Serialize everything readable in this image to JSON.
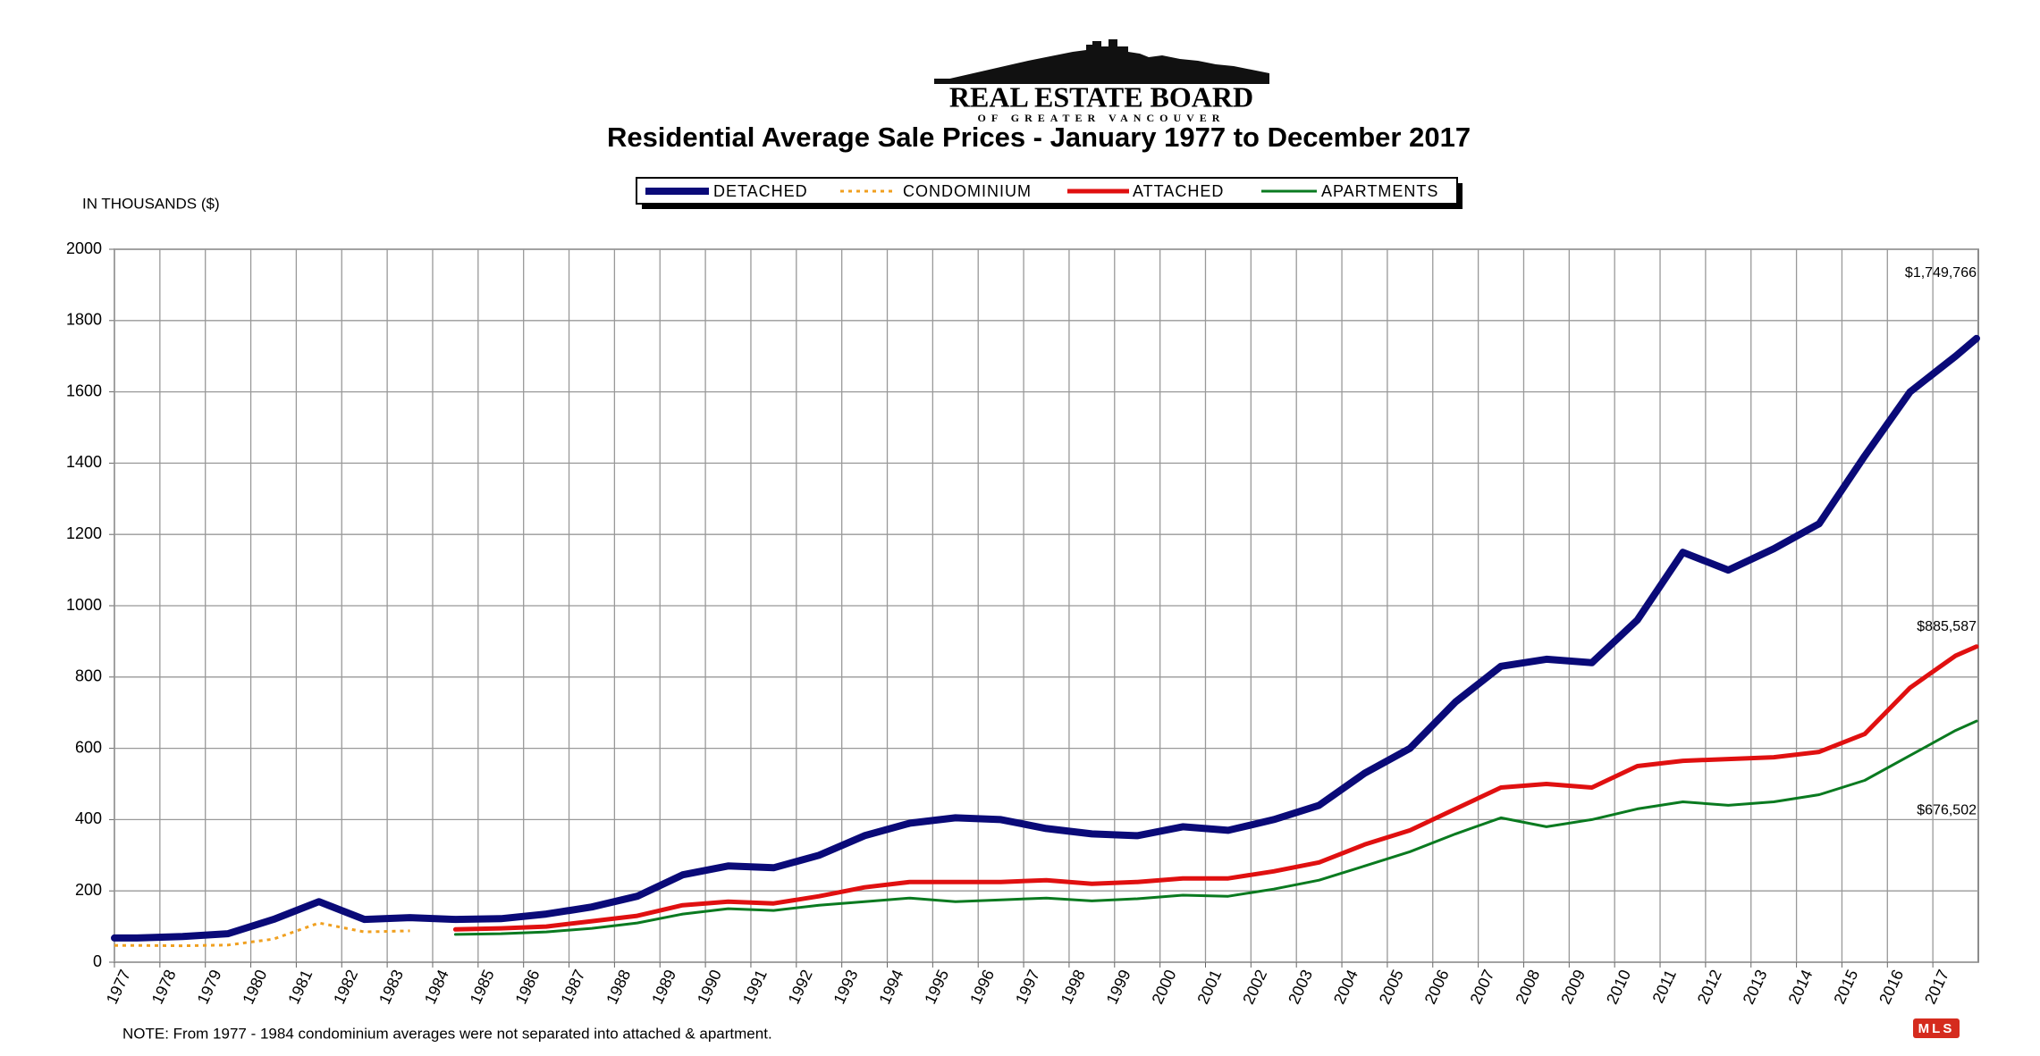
{
  "logo": {
    "name": "REAL ESTATE BOARD",
    "subname": "OF GREATER VANCOUVER"
  },
  "mls_logo": "MLS",
  "chart_data": {
    "type": "line",
    "title": "Residential Average Sale Prices  -  January 1977 to December 2017",
    "y_label": "IN THOUSANDS ($)",
    "note": "NOTE:  From 1977 - 1984 condominium averages were not separated into attached & apartment.",
    "x": [
      1977.0,
      1977.5,
      1978.5,
      1979.5,
      1980.5,
      1981.5,
      1982.5,
      1983.5,
      1984.5,
      1985.5,
      1986.5,
      1987.5,
      1988.5,
      1989.5,
      1990.5,
      1991.5,
      1992.5,
      1993.5,
      1994.5,
      1995.5,
      1996.5,
      1997.5,
      1998.5,
      1999.5,
      2000.5,
      2001.5,
      2002.5,
      2003.5,
      2004.5,
      2005.5,
      2006.5,
      2007.5,
      2008.5,
      2009.5,
      2010.5,
      2011.5,
      2012.5,
      2013.5,
      2014.5,
      2015.5,
      2016.5,
      2017.5,
      2017.96
    ],
    "series": [
      {
        "name": "DETACHED",
        "color": "#0a0a78",
        "values": [
          68,
          68,
          72,
          80,
          120,
          170,
          120,
          125,
          120,
          122,
          135,
          155,
          185,
          245,
          270,
          265,
          300,
          355,
          390,
          405,
          400,
          375,
          360,
          355,
          380,
          370,
          400,
          440,
          530,
          600,
          730,
          830,
          850,
          840,
          960,
          1150,
          1100,
          1160,
          1230,
          1420,
          1600,
          1700,
          1749.766
        ],
        "value_labels": [
          null,
          null,
          null,
          null,
          null,
          null,
          null,
          null,
          null,
          null,
          null,
          null,
          null,
          null,
          null,
          null,
          null,
          null,
          null,
          null,
          null,
          null,
          null,
          null,
          null,
          null,
          null,
          null,
          null,
          null,
          null,
          null,
          null,
          null,
          null,
          null,
          null,
          null,
          null,
          null,
          null,
          null,
          "$1,749,766"
        ]
      },
      {
        "name": "CONDOMINIUM",
        "color": "#f0a020",
        "dash": "dotted",
        "values": [
          47,
          47,
          46,
          48,
          65,
          110,
          85,
          88,
          null,
          null,
          null,
          null,
          null,
          null,
          null,
          null,
          null,
          null,
          null,
          null,
          null,
          null,
          null,
          null,
          null,
          null,
          null,
          null,
          null,
          null,
          null,
          null,
          null,
          null,
          null,
          null,
          null,
          null,
          null,
          null,
          null,
          null,
          null
        ]
      },
      {
        "name": "ATTACHED",
        "color": "#e01010",
        "values": [
          null,
          null,
          null,
          null,
          null,
          null,
          null,
          null,
          92,
          95,
          100,
          115,
          130,
          160,
          170,
          165,
          185,
          210,
          225,
          225,
          225,
          230,
          220,
          225,
          235,
          235,
          255,
          280,
          330,
          370,
          430,
          490,
          500,
          490,
          550,
          565,
          570,
          575,
          590,
          640,
          770,
          860,
          885.587
        ],
        "value_labels": [
          null,
          null,
          null,
          null,
          null,
          null,
          null,
          null,
          null,
          null,
          null,
          null,
          null,
          null,
          null,
          null,
          null,
          null,
          null,
          null,
          null,
          null,
          null,
          null,
          null,
          null,
          null,
          null,
          null,
          null,
          null,
          null,
          null,
          null,
          null,
          null,
          null,
          null,
          null,
          null,
          null,
          null,
          "$885,587"
        ]
      },
      {
        "name": "APARTMENTS",
        "color": "#0a7a20",
        "values": [
          null,
          null,
          null,
          null,
          null,
          null,
          null,
          null,
          78,
          80,
          85,
          95,
          110,
          135,
          150,
          145,
          160,
          170,
          180,
          170,
          175,
          180,
          172,
          178,
          188,
          185,
          205,
          230,
          270,
          310,
          360,
          405,
          380,
          400,
          430,
          450,
          440,
          450,
          470,
          510,
          580,
          650,
          676.502
        ],
        "value_labels": [
          null,
          null,
          null,
          null,
          null,
          null,
          null,
          null,
          null,
          null,
          null,
          null,
          null,
          null,
          null,
          null,
          null,
          null,
          null,
          null,
          null,
          null,
          null,
          null,
          null,
          null,
          null,
          null,
          null,
          null,
          null,
          null,
          null,
          null,
          null,
          null,
          null,
          null,
          null,
          null,
          null,
          null,
          "$676,502"
        ]
      }
    ],
    "xlim": [
      1977,
      2018
    ],
    "xticks": [
      1977,
      1978,
      1979,
      1980,
      1981,
      1982,
      1983,
      1984,
      1985,
      1986,
      1987,
      1988,
      1989,
      1990,
      1991,
      1992,
      1993,
      1994,
      1995,
      1996,
      1997,
      1998,
      1999,
      2000,
      2001,
      2002,
      2003,
      2004,
      2005,
      2006,
      2007,
      2008,
      2009,
      2010,
      2011,
      2012,
      2013,
      2014,
      2015,
      2016,
      2017
    ],
    "ylim": [
      0,
      2000
    ],
    "yticks": [
      0,
      200,
      400,
      600,
      800,
      1000,
      1200,
      1400,
      1600,
      1800,
      2000
    ],
    "grid": true
  }
}
